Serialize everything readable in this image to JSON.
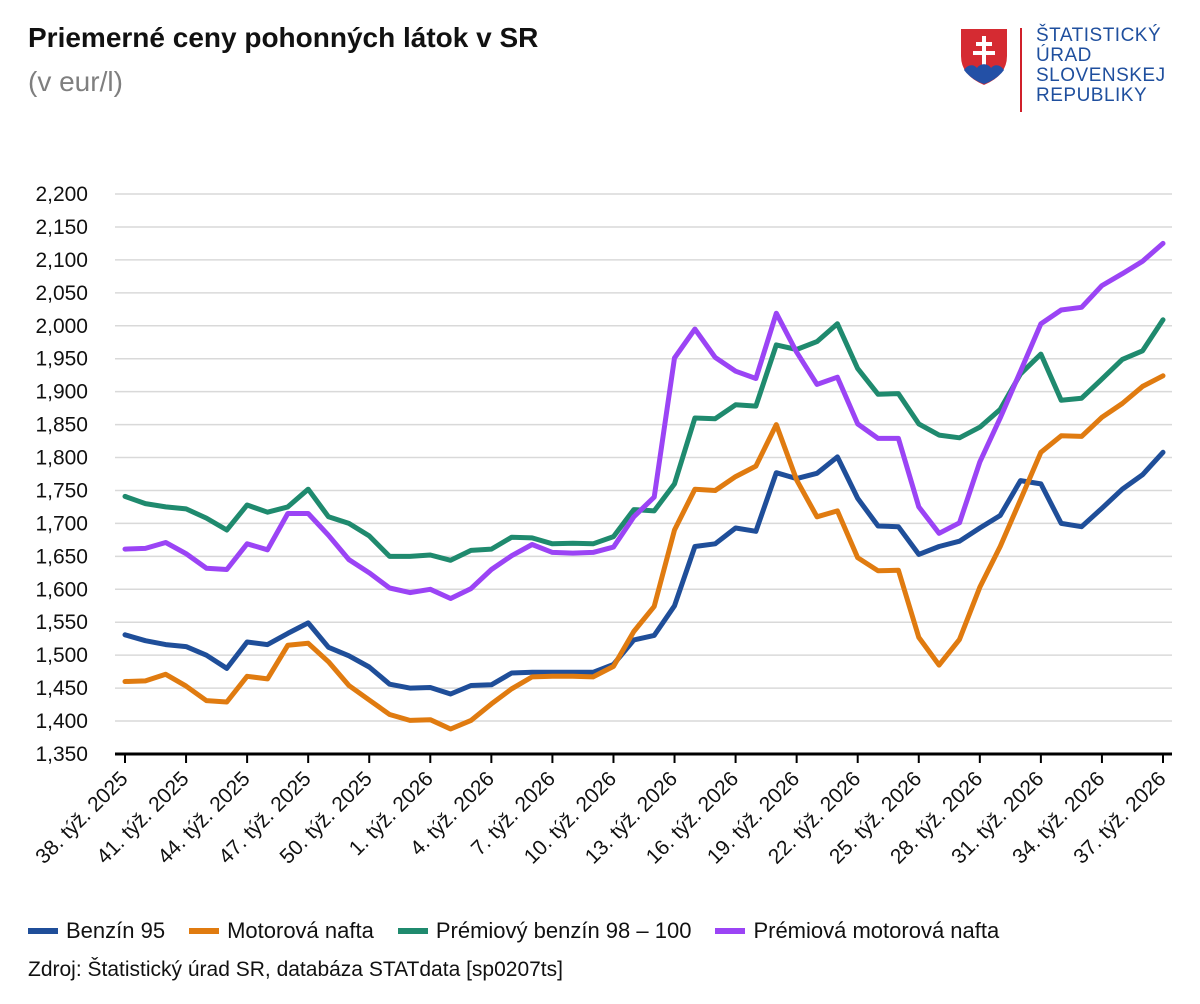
{
  "title": "Priemerné ceny pohonných látok v SR",
  "subtitle": "(v eur/l)",
  "logo": {
    "lines": [
      "ŠTATISTICKÝ",
      "ÚRAD",
      "SLOVENSKEJ",
      "REPUBLIKY"
    ],
    "icon": "slovak-coat-of-arms-icon"
  },
  "source": "Zdroj: Štatistický úrad SR, databáza STATdata [sp0207ts]",
  "colors": {
    "benzin95": "#1f4e99",
    "nafta": "#e07b10",
    "premium_benzin": "#1f8a6e",
    "premium_nafta": "#9b44f5"
  },
  "chart_data": {
    "type": "line",
    "title": "Priemerné ceny pohonných látok v SR",
    "ylabel": "(v eur/l)",
    "ylim": [
      1.35,
      2.2
    ],
    "yticks": [
      "1,350",
      "1,400",
      "1,450",
      "1,500",
      "1,550",
      "1,600",
      "1,650",
      "1,700",
      "1,750",
      "1,800",
      "1,850",
      "1,900",
      "1,950",
      "2,000",
      "2,050",
      "2,100",
      "2,150",
      "2,200"
    ],
    "ytick_values": [
      1.35,
      1.4,
      1.45,
      1.5,
      1.55,
      1.6,
      1.65,
      1.7,
      1.75,
      1.8,
      1.85,
      1.9,
      1.95,
      2.0,
      2.05,
      2.1,
      2.15,
      2.2
    ],
    "x_tick_labels": [
      "38. týž. 2025",
      "41. týž. 2025",
      "44. týž. 2025",
      "47. týž. 2025",
      "50. týž. 2025",
      "1. týž. 2026",
      "4. týž. 2026",
      "7. týž. 2026",
      "10. týž. 2026",
      "13. týž. 2026",
      "16. týž. 2026",
      "19. týž. 2026",
      "22. týž. 2026",
      "25. týž. 2026",
      "28. týž. 2026",
      "31. týž. 2026",
      "34. týž. 2026",
      "37. týž. 2026"
    ],
    "grid": true,
    "legend_position": "bottom",
    "series": [
      {
        "name": "Benzín 95",
        "color_key": "benzin95",
        "values": [
          1.531,
          1.522,
          1.516,
          1.513,
          1.5,
          1.48,
          1.52,
          1.516,
          1.533,
          1.549,
          1.512,
          1.499,
          1.482,
          1.456,
          1.45,
          1.451,
          1.441,
          1.454,
          1.455,
          1.473,
          1.474,
          1.474,
          1.474,
          1.474,
          1.486,
          1.523,
          1.53,
          1.575,
          1.665,
          1.669,
          1.693,
          1.688,
          1.777,
          1.768,
          1.776,
          1.801,
          1.738,
          1.696,
          1.695,
          1.653,
          1.665,
          1.673,
          1.693,
          1.712,
          1.765,
          1.76,
          1.7,
          1.695,
          1.723,
          1.752,
          1.774,
          1.808
        ]
      },
      {
        "name": "Motorová nafta",
        "color_key": "nafta",
        "values": [
          1.46,
          1.461,
          1.471,
          1.453,
          1.431,
          1.429,
          1.468,
          1.464,
          1.515,
          1.518,
          1.49,
          1.454,
          1.432,
          1.41,
          1.401,
          1.402,
          1.388,
          1.401,
          1.426,
          1.449,
          1.467,
          1.468,
          1.468,
          1.467,
          1.483,
          1.536,
          1.574,
          1.69,
          1.752,
          1.75,
          1.771,
          1.787,
          1.85,
          1.766,
          1.71,
          1.719,
          1.648,
          1.628,
          1.629,
          1.527,
          1.485,
          1.524,
          1.603,
          1.665,
          1.736,
          1.808,
          1.833,
          1.832,
          1.861,
          1.882,
          1.908,
          1.924
        ]
      },
      {
        "name": "Prémiový benzín 98 – 100",
        "color_key": "premium_benzin",
        "values": [
          1.741,
          1.73,
          1.725,
          1.722,
          1.708,
          1.69,
          1.728,
          1.717,
          1.725,
          1.752,
          1.71,
          1.7,
          1.681,
          1.65,
          1.65,
          1.652,
          1.644,
          1.659,
          1.661,
          1.679,
          1.678,
          1.669,
          1.67,
          1.669,
          1.68,
          1.721,
          1.719,
          1.76,
          1.86,
          1.859,
          1.88,
          1.878,
          1.971,
          1.964,
          1.976,
          2.003,
          1.935,
          1.896,
          1.897,
          1.851,
          1.834,
          1.83,
          1.846,
          1.873,
          1.927,
          1.957,
          1.887,
          1.89,
          1.919,
          1.949,
          1.962,
          2.009
        ]
      },
      {
        "name": "Prémiová motorová nafta",
        "color_key": "premium_nafta",
        "values": [
          1.661,
          1.662,
          1.671,
          1.654,
          1.632,
          1.63,
          1.669,
          1.66,
          1.715,
          1.715,
          1.682,
          1.645,
          1.625,
          1.602,
          1.595,
          1.6,
          1.586,
          1.601,
          1.63,
          1.651,
          1.668,
          1.656,
          1.655,
          1.656,
          1.664,
          1.71,
          1.74,
          1.951,
          1.995,
          1.952,
          1.931,
          1.92,
          2.019,
          1.96,
          1.911,
          1.922,
          1.851,
          1.829,
          1.829,
          1.725,
          1.685,
          1.701,
          1.793,
          1.86,
          1.931,
          2.003,
          2.024,
          2.028,
          2.061,
          2.079,
          2.098,
          2.125
        ]
      }
    ]
  }
}
